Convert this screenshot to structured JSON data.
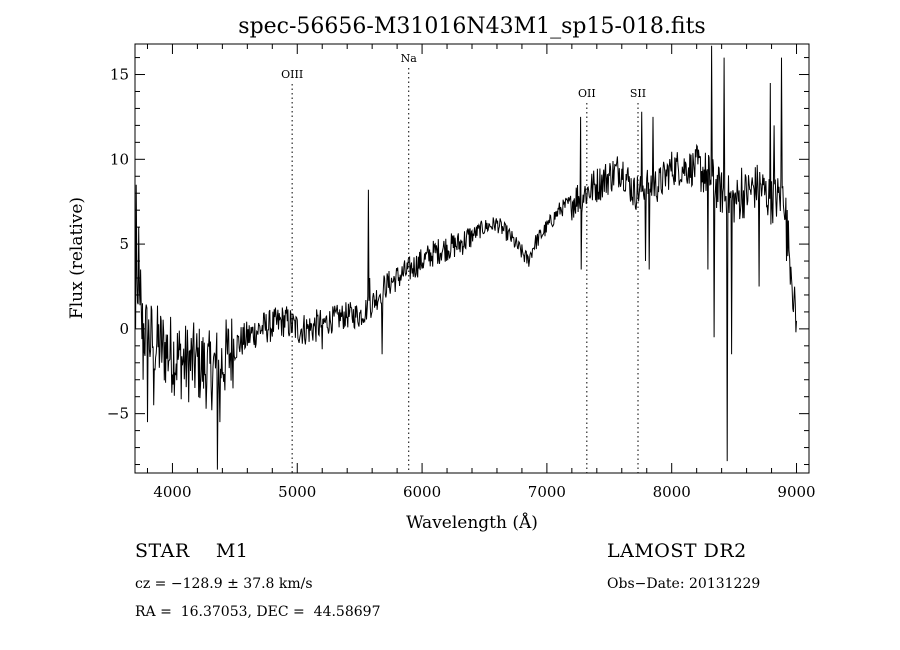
{
  "chart_data": {
    "type": "line",
    "title": "spec-56656-M31016N43M1_sp15-018.fits",
    "xlabel": "Wavelength (Å)",
    "ylabel": "Flux (relative)",
    "xlim": [
      3700,
      9100
    ],
    "ylim": [
      -8.5,
      16.8
    ],
    "x_ticks": [
      4000,
      5000,
      6000,
      7000,
      8000,
      9000
    ],
    "y_ticks": [
      -5,
      0,
      5,
      10,
      15
    ],
    "grid": false,
    "continuum_anchors": [
      [
        3700,
        1.0
      ],
      [
        3800,
        -0.5
      ],
      [
        3900,
        -1.0
      ],
      [
        4000,
        -1.5
      ],
      [
        4100,
        -2.0
      ],
      [
        4200,
        -2.0
      ],
      [
        4300,
        -2.5
      ],
      [
        4400,
        -2.0
      ],
      [
        4500,
        -1.0
      ],
      [
        4600,
        -0.5
      ],
      [
        4700,
        0.0
      ],
      [
        4800,
        0.2
      ],
      [
        4900,
        0.5
      ],
      [
        5000,
        0.0
      ],
      [
        5100,
        0.0
      ],
      [
        5200,
        0.3
      ],
      [
        5300,
        0.6
      ],
      [
        5400,
        0.8
      ],
      [
        5500,
        0.8
      ],
      [
        5600,
        1.5
      ],
      [
        5700,
        2.5
      ],
      [
        5800,
        3.0
      ],
      [
        5900,
        3.5
      ],
      [
        6000,
        4.0
      ],
      [
        6100,
        4.5
      ],
      [
        6200,
        4.8
      ],
      [
        6300,
        5.0
      ],
      [
        6400,
        5.5
      ],
      [
        6500,
        6.0
      ],
      [
        6600,
        6.2
      ],
      [
        6700,
        5.5
      ],
      [
        6800,
        4.5
      ],
      [
        6850,
        4.0
      ],
      [
        6900,
        5.0
      ],
      [
        7000,
        6.0
      ],
      [
        7100,
        7.0
      ],
      [
        7200,
        7.5
      ],
      [
        7300,
        8.0
      ],
      [
        7400,
        8.5
      ],
      [
        7500,
        9.0
      ],
      [
        7600,
        9.5
      ],
      [
        7700,
        8.0
      ],
      [
        7800,
        8.5
      ],
      [
        7900,
        8.5
      ],
      [
        8000,
        9.5
      ],
      [
        8100,
        9.5
      ],
      [
        8200,
        9.5
      ],
      [
        8300,
        9.0
      ],
      [
        8400,
        8.0
      ],
      [
        8500,
        7.5
      ],
      [
        8600,
        8.0
      ],
      [
        8700,
        8.5
      ],
      [
        8800,
        7.5
      ],
      [
        8900,
        8.0
      ],
      [
        9000,
        0.0
      ]
    ],
    "spikes": [
      [
        3712,
        8.5
      ],
      [
        3730,
        6.0
      ],
      [
        3745,
        3.5
      ],
      [
        3765,
        -3.0
      ],
      [
        3800,
        -5.5
      ],
      [
        3850,
        -4.5
      ],
      [
        4360,
        -8.3
      ],
      [
        4380,
        -5.5
      ],
      [
        5200,
        -1.2
      ],
      [
        5570,
        8.2
      ],
      [
        5580,
        3.0
      ],
      [
        5680,
        -1.5
      ],
      [
        7270,
        12.5
      ],
      [
        7275,
        3.5
      ],
      [
        7760,
        12.8
      ],
      [
        7790,
        4.0
      ],
      [
        7820,
        3.5
      ],
      [
        7850,
        12.5
      ],
      [
        8290,
        3.5
      ],
      [
        8320,
        16.7
      ],
      [
        8340,
        -0.5
      ],
      [
        8420,
        16.0
      ],
      [
        8445,
        -7.8
      ],
      [
        8480,
        -1.5
      ],
      [
        8560,
        9.5
      ],
      [
        8700,
        2.5
      ],
      [
        8790,
        14.5
      ],
      [
        8820,
        12.0
      ],
      [
        8880,
        16.0
      ],
      [
        8920,
        4.0
      ],
      [
        8960,
        3.0
      ]
    ],
    "lines": [
      {
        "name": "OIII",
        "x": 4959
      },
      {
        "name": "Na",
        "x": 5893
      },
      {
        "name": "OII",
        "x": 7320
      },
      {
        "name": "SII",
        "x": 7730
      }
    ]
  },
  "footer": {
    "object_class": "STAR    M1",
    "redshift": "cz = −128.9 ± 37.8 km/s",
    "coordinates": "RA =  16.37053, DEC =  44.58697",
    "survey": "LAMOST DR2",
    "obs_date": "Obs−Date: 20131229"
  }
}
